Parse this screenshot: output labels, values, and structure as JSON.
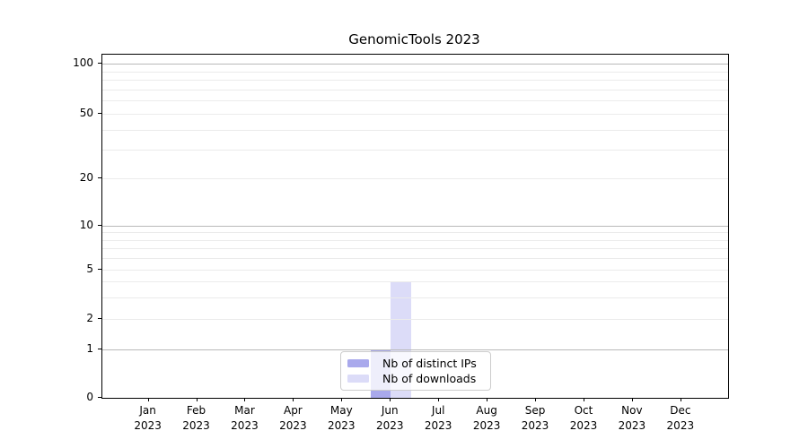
{
  "chart_data": {
    "type": "bar",
    "title": "GenomicTools 2023",
    "categories": [
      "Jan 2023",
      "Feb 2023",
      "Mar 2023",
      "Apr 2023",
      "May 2023",
      "Jun 2023",
      "Jul 2023",
      "Aug 2023",
      "Sep 2023",
      "Oct 2023",
      "Nov 2023",
      "Dec 2023"
    ],
    "series": [
      {
        "name": "Nb of distinct IPs",
        "color": "#a9a9ec",
        "values": [
          0,
          0,
          0,
          0,
          0,
          1,
          0,
          0,
          0,
          0,
          0,
          0
        ]
      },
      {
        "name": "Nb of downloads",
        "color": "#dcdcf8",
        "values": [
          0,
          0,
          0,
          0,
          0,
          4,
          0,
          0,
          0,
          0,
          0,
          0
        ]
      }
    ],
    "xlabel": "",
    "ylabel": "",
    "yscale": "symlog",
    "ylim": [
      0,
      110
    ],
    "y_ticks": [
      0,
      1,
      2,
      5,
      10,
      20,
      50,
      100
    ],
    "grid": true,
    "legend": {
      "position": "lower center",
      "entries": [
        "Nb of distinct IPs",
        "Nb of downloads"
      ]
    }
  },
  "colors": {
    "major_gridline": "#b9b9b9",
    "minor_gridline": "#ebebeb",
    "axis_spine": "#000000",
    "background": "#ffffff"
  }
}
